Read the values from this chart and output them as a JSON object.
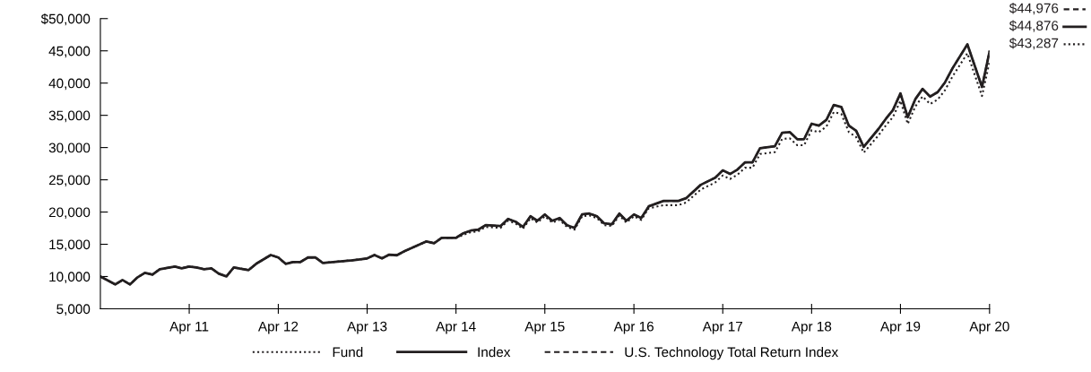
{
  "chart_data": {
    "type": "line",
    "x": [
      "2010-04",
      "2010-06",
      "2010-07",
      "2010-08",
      "2010-09",
      "2010-10",
      "2010-11",
      "2010-12",
      "2011-02",
      "2011-03",
      "2011-04",
      "2011-05",
      "2011-06",
      "2011-07",
      "2011-08",
      "2011-09",
      "2011-10",
      "2011-12",
      "2012-01",
      "2012-03",
      "2012-04",
      "2012-05",
      "2012-06",
      "2012-07",
      "2012-08",
      "2012-09",
      "2012-10",
      "2013-02",
      "2013-04",
      "2013-05",
      "2013-06",
      "2013-07",
      "2013-08",
      "2013-09",
      "2013-12",
      "2014-01",
      "2014-02",
      "2014-04",
      "2014-05",
      "2014-06",
      "2014-07",
      "2014-08",
      "2014-10",
      "2014-11",
      "2014-12",
      "2015-01",
      "2015-02",
      "2015-03",
      "2015-04",
      "2015-05",
      "2015-06",
      "2015-07",
      "2015-08",
      "2015-09",
      "2015-10",
      "2015-11",
      "2015-12",
      "2016-01",
      "2016-02",
      "2016-03",
      "2016-04",
      "2016-05",
      "2016-06",
      "2016-08",
      "2016-10",
      "2016-11",
      "2017-01",
      "2017-03",
      "2017-04",
      "2017-05",
      "2017-06",
      "2017-07",
      "2017-08",
      "2017-09",
      "2017-11",
      "2017-12",
      "2018-01",
      "2018-02",
      "2018-03",
      "2018-04",
      "2018-05",
      "2018-06",
      "2018-07",
      "2018-08",
      "2018-09",
      "2018-10",
      "2018-11",
      "2019-01",
      "2019-02",
      "2019-03",
      "2019-04",
      "2019-05",
      "2019-06",
      "2019-07",
      "2019-08",
      "2019-09",
      "2019-10",
      "2019-11",
      "2020-01",
      "2020-03",
      "2020-04"
    ],
    "series": [
      {
        "name": "Fund",
        "color": "#231f20",
        "line_style": "dotted",
        "values": [
          10000,
          8770,
          9460,
          8770,
          9880,
          10580,
          10300,
          11140,
          11550,
          11270,
          11550,
          11400,
          11140,
          11270,
          10440,
          10020,
          11410,
          11000,
          11970,
          13340,
          12950,
          11970,
          12250,
          12250,
          12950,
          12950,
          12110,
          12530,
          12810,
          13340,
          12810,
          13400,
          13300,
          13920,
          15450,
          15170,
          16000,
          16000,
          16450,
          16870,
          17010,
          17690,
          17550,
          18650,
          18240,
          17410,
          19060,
          18370,
          19340,
          18370,
          18780,
          17690,
          17280,
          19340,
          19470,
          19060,
          17970,
          17830,
          19470,
          18370,
          19340,
          18780,
          20580,
          21070,
          21070,
          21480,
          23500,
          24580,
          25670,
          25120,
          25800,
          26870,
          26870,
          29000,
          29290,
          31330,
          31430,
          30360,
          30360,
          32690,
          32400,
          33270,
          35500,
          35210,
          32400,
          31620,
          29200,
          31910,
          33470,
          34730,
          37250,
          33660,
          36380,
          37930,
          36760,
          37440,
          38900,
          41030,
          44620,
          38000,
          43287
        ],
        "value_labels": [
          null,
          null,
          null,
          null,
          null,
          null,
          null,
          null,
          null,
          null,
          null,
          null,
          null,
          null,
          null,
          null,
          null,
          null,
          null,
          null,
          null,
          null,
          null,
          null,
          null,
          null,
          null,
          null,
          null,
          null,
          null,
          null,
          null,
          null,
          null,
          null,
          null,
          null,
          null,
          null,
          null,
          null,
          null,
          null,
          null,
          null,
          null,
          null,
          null,
          null,
          null,
          null,
          null,
          null,
          null,
          null,
          null,
          null,
          null,
          null,
          null,
          null,
          null,
          null,
          null,
          null,
          null,
          null,
          null,
          null,
          null,
          null,
          null,
          null,
          null,
          null,
          null,
          null,
          null,
          null,
          null,
          null,
          null,
          null,
          null,
          null,
          null,
          null,
          null,
          null,
          null,
          null,
          null,
          null,
          null,
          null,
          null,
          null,
          null,
          null,
          "$43,287"
        ]
      },
      {
        "name": "Index",
        "color": "#231f20",
        "line_style": "solid",
        "values": [
          10000,
          8770,
          9460,
          8770,
          9880,
          10580,
          10300,
          11140,
          11550,
          11270,
          11550,
          11400,
          11140,
          11270,
          10440,
          10020,
          11410,
          11000,
          11970,
          13340,
          12950,
          11970,
          12250,
          12250,
          12950,
          12950,
          12110,
          12530,
          12810,
          13340,
          12810,
          13400,
          13300,
          13920,
          15450,
          15170,
          16000,
          16000,
          16700,
          17130,
          17270,
          17960,
          17820,
          18930,
          18520,
          17680,
          19350,
          18650,
          19630,
          18650,
          19070,
          17960,
          17540,
          19630,
          19770,
          19350,
          18240,
          18100,
          19770,
          18650,
          19630,
          19070,
          20890,
          21720,
          21720,
          22140,
          24230,
          25340,
          26460,
          25900,
          26600,
          27700,
          27700,
          29900,
          30200,
          32300,
          32400,
          31300,
          31300,
          33700,
          33400,
          34300,
          36600,
          36300,
          33400,
          32600,
          30100,
          32900,
          34500,
          35800,
          38400,
          34700,
          37500,
          39100,
          37900,
          38600,
          40100,
          42300,
          46000,
          39400,
          44876
        ],
        "value_labels": [
          null,
          null,
          null,
          null,
          null,
          null,
          null,
          null,
          null,
          null,
          null,
          null,
          null,
          null,
          null,
          null,
          null,
          null,
          null,
          null,
          null,
          null,
          null,
          null,
          null,
          null,
          null,
          null,
          null,
          null,
          null,
          null,
          null,
          null,
          null,
          null,
          null,
          null,
          null,
          null,
          null,
          null,
          null,
          null,
          null,
          null,
          null,
          null,
          null,
          null,
          null,
          null,
          null,
          null,
          null,
          null,
          null,
          null,
          null,
          null,
          null,
          null,
          null,
          null,
          null,
          null,
          null,
          null,
          null,
          null,
          null,
          null,
          null,
          null,
          null,
          null,
          null,
          null,
          null,
          null,
          null,
          null,
          null,
          null,
          null,
          null,
          null,
          null,
          null,
          null,
          null,
          null,
          null,
          null,
          null,
          null,
          null,
          null,
          null,
          null,
          "$44,876"
        ]
      },
      {
        "name": "U.S. Technology Total Return Index",
        "color": "#231f20",
        "line_style": "dashed",
        "values": [
          10000,
          8770,
          9460,
          8770,
          9880,
          10580,
          10300,
          11140,
          11550,
          11270,
          11550,
          11400,
          11140,
          11270,
          10440,
          10020,
          11410,
          11000,
          11970,
          13340,
          12950,
          11970,
          12250,
          12250,
          12950,
          12950,
          12110,
          12530,
          12810,
          13340,
          12810,
          13400,
          13300,
          13920,
          15450,
          15170,
          16000,
          16000,
          16700,
          17130,
          17270,
          17960,
          17820,
          18930,
          18520,
          17680,
          19350,
          18650,
          19630,
          18650,
          19070,
          17960,
          17540,
          19630,
          19770,
          19350,
          18240,
          18100,
          19770,
          18650,
          19630,
          19070,
          20890,
          21720,
          21720,
          22140,
          24230,
          25340,
          26460,
          25900,
          26600,
          27700,
          27700,
          29900,
          30200,
          32300,
          32400,
          31300,
          31300,
          33700,
          33400,
          34300,
          36600,
          36300,
          33400,
          32600,
          30100,
          32900,
          34500,
          35800,
          38400,
          34700,
          37500,
          39100,
          37900,
          38600,
          40100,
          42300,
          46000,
          39400,
          44976
        ],
        "value_labels": [
          null,
          null,
          null,
          null,
          null,
          null,
          null,
          null,
          null,
          null,
          null,
          null,
          null,
          null,
          null,
          null,
          null,
          null,
          null,
          null,
          null,
          null,
          null,
          null,
          null,
          null,
          null,
          null,
          null,
          null,
          null,
          null,
          null,
          null,
          null,
          null,
          null,
          null,
          null,
          null,
          null,
          null,
          null,
          null,
          null,
          null,
          null,
          null,
          null,
          null,
          null,
          null,
          null,
          null,
          null,
          null,
          null,
          null,
          null,
          null,
          null,
          null,
          null,
          null,
          null,
          null,
          null,
          null,
          null,
          null,
          null,
          null,
          null,
          null,
          null,
          null,
          null,
          null,
          null,
          null,
          null,
          null,
          null,
          null,
          null,
          null,
          null,
          null,
          null,
          null,
          null,
          null,
          null,
          null,
          null,
          null,
          null,
          null,
          null,
          null,
          "$44,976"
        ]
      }
    ],
    "xlim": [
      "2010-04",
      "2020-04"
    ],
    "xticks": [
      {
        "value": "2011-04",
        "label": "Apr 11"
      },
      {
        "value": "2012-04",
        "label": "Apr 12"
      },
      {
        "value": "2013-04",
        "label": "Apr 13"
      },
      {
        "value": "2014-04",
        "label": "Apr 14"
      },
      {
        "value": "2015-04",
        "label": "Apr 15"
      },
      {
        "value": "2016-04",
        "label": "Apr 16"
      },
      {
        "value": "2017-04",
        "label": "Apr 17"
      },
      {
        "value": "2018-04",
        "label": "Apr 18"
      },
      {
        "value": "2019-04",
        "label": "Apr 19"
      },
      {
        "value": "2020-04",
        "label": "Apr 20"
      }
    ],
    "ylim": [
      5000,
      50000
    ],
    "yticks": [
      {
        "value": 5000,
        "label": "5,000"
      },
      {
        "value": 10000,
        "label": "10,000"
      },
      {
        "value": 15000,
        "label": "15,000"
      },
      {
        "value": 20000,
        "label": "20,000"
      },
      {
        "value": 25000,
        "label": "25,000"
      },
      {
        "value": 30000,
        "label": "30,000"
      },
      {
        "value": 35000,
        "label": "35,000"
      },
      {
        "value": 40000,
        "label": "40,000"
      },
      {
        "value": 45000,
        "label": "45,000"
      },
      {
        "value": 50000,
        "label": "$50,000"
      }
    ],
    "grid": false,
    "legend": "bottom"
  }
}
